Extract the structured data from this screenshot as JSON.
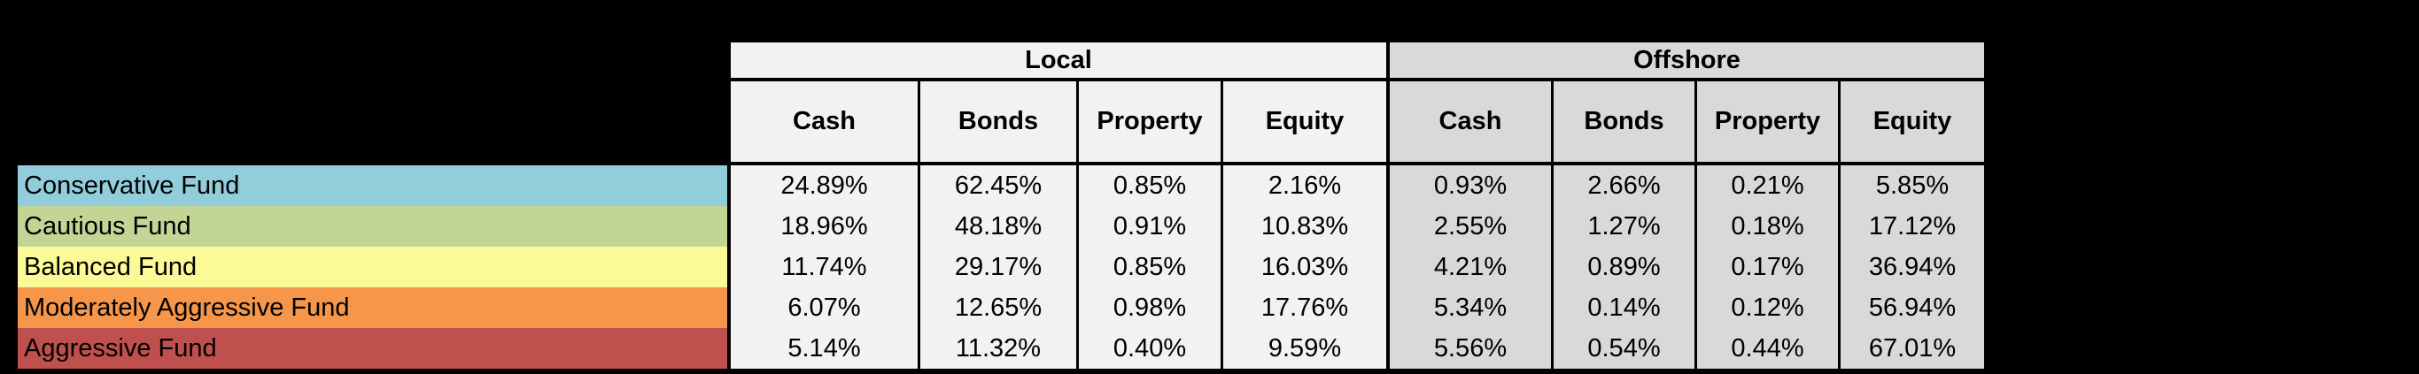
{
  "page": {
    "background_color": "#000000",
    "border_color": "#000000"
  },
  "chart_data": {
    "type": "table",
    "column_groups": [
      {
        "label": "Local",
        "bg_color": "#F2F2F2",
        "columns": [
          "Cash",
          "Bonds",
          "Property",
          "Equity"
        ]
      },
      {
        "label": "Offshore",
        "bg_color": "#D9D9D9",
        "columns": [
          "Cash",
          "Bonds",
          "Property",
          "Equity"
        ]
      }
    ],
    "rows": [
      {
        "label": "Conservative Fund",
        "color": "#92CDDC",
        "values": [
          "24.89%",
          "62.45%",
          "0.85%",
          "2.16%",
          "0.93%",
          "2.66%",
          "0.21%",
          "5.85%"
        ]
      },
      {
        "label": "Cautious Fund",
        "color": "#C2D595",
        "values": [
          "18.96%",
          "48.18%",
          "0.91%",
          "10.83%",
          "2.55%",
          "1.27%",
          "0.18%",
          "17.12%"
        ]
      },
      {
        "label": "Balanced Fund",
        "color": "#FCFA97",
        "values": [
          "11.74%",
          "29.17%",
          "0.85%",
          "16.03%",
          "4.21%",
          "0.89%",
          "0.17%",
          "36.94%"
        ]
      },
      {
        "label": "Moderately Aggressive Fund",
        "color": "#F5964A",
        "values": [
          "6.07%",
          "12.65%",
          "0.98%",
          "17.76%",
          "5.34%",
          "0.14%",
          "0.12%",
          "56.94%"
        ]
      },
      {
        "label": "Aggressive Fund",
        "color": "#C0504E",
        "values": [
          "5.14%",
          "11.32%",
          "0.40%",
          "9.59%",
          "5.56%",
          "0.54%",
          "0.44%",
          "67.01%"
        ]
      }
    ]
  }
}
